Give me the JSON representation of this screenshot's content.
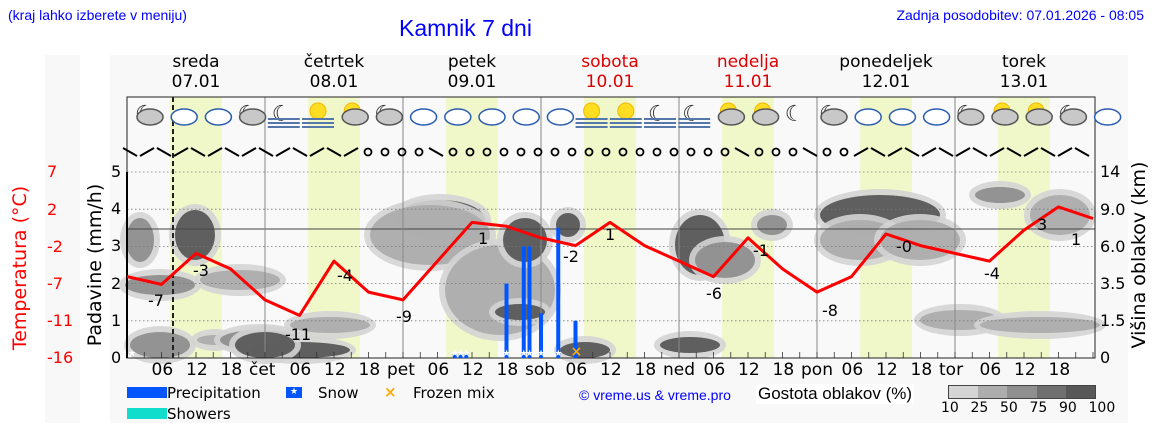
{
  "header": {
    "hint": "(kraj lahko izberete v meniju)",
    "title": "Kamnik 7 dni",
    "updated": "Zadnja posodobitev: 07.01.2026 - 08:05"
  },
  "days": [
    {
      "name": "sreda",
      "date": "07.01",
      "weekend": false
    },
    {
      "name": "četrtek",
      "date": "08.01",
      "weekend": false
    },
    {
      "name": "petek",
      "date": "09.01",
      "weekend": false
    },
    {
      "name": "sobota",
      "date": "10.01",
      "weekend": true
    },
    {
      "name": "nedelja",
      "date": "11.01",
      "weekend": true
    },
    {
      "name": "ponedeljek",
      "date": "12.01",
      "weekend": false
    },
    {
      "name": "torek",
      "date": "13.01",
      "weekend": false
    }
  ],
  "axes": {
    "left_temp_label": "Temperatura (°C)",
    "left_temp_ticks": [
      "7",
      "2",
      "-2",
      "-7",
      "-11",
      "-16"
    ],
    "left_precip_label": "Padavine (mm/h)",
    "left_precip_ticks": [
      "0",
      "1",
      "2",
      "3",
      "4",
      "5"
    ],
    "right_label": "Višina oblakov (km)",
    "right_ticks": [
      "0",
      "1.5",
      "3.5",
      "6.0",
      "9.0",
      "14"
    ],
    "x_ticks": [
      "06",
      "12",
      "18",
      "čet",
      "06",
      "12",
      "18",
      "pet",
      "06",
      "12",
      "18",
      "sob",
      "06",
      "12",
      "18",
      "ned",
      "06",
      "12",
      "18",
      "pon",
      "06",
      "12",
      "18",
      "tor",
      "06",
      "12",
      "18"
    ]
  },
  "legend": {
    "precipitation": "Precipitation",
    "snow": "Snow",
    "frozen_mix": "Frozen mix",
    "showers": "Showers",
    "credit": "© vreme.us & vreme.pro",
    "cloud_density_label": "Gostota oblakov (%)",
    "cloud_density_ticks": [
      "10",
      "25",
      "50",
      "75",
      "90",
      "100"
    ]
  },
  "colors": {
    "temperature": "#ff0000",
    "precipitation": "#0055ff",
    "showers": "#11ddcc",
    "frozen_mix": "#ffaa00",
    "daylight": "#f0f7c8",
    "weekend_text": "#dd0000",
    "link_blue": "#0000ff"
  },
  "chart_data": {
    "type": "line",
    "title": "Kamnik 7 dni",
    "xlabel": "",
    "ylabel": "Padavine (mm/h)",
    "ylim": [
      0,
      5
    ],
    "grid": true,
    "temperature_series": {
      "name": "Temperatura (°C)",
      "unit": "°C",
      "range": [
        -16,
        9
      ],
      "hours": [
        0,
        6,
        12,
        18,
        24,
        30,
        36,
        42,
        48,
        54,
        60,
        66,
        72,
        78,
        84,
        90,
        96,
        102,
        108,
        114,
        120,
        126,
        132,
        138,
        144,
        150,
        156,
        162,
        168
      ],
      "values": [
        -6,
        -7,
        -3,
        -5,
        -9,
        -11,
        -4,
        -8,
        -9,
        -4,
        1,
        0.5,
        -1,
        -2,
        1,
        -2,
        -4,
        -6,
        -1,
        -5,
        -8,
        -6,
        -0.5,
        -2,
        -3,
        -4,
        0,
        3,
        1.5
      ]
    },
    "temperature_labels": [
      {
        "hour": 5,
        "value": "-7"
      },
      {
        "hour": 13,
        "value": "-3"
      },
      {
        "hour": 30,
        "value": "-11"
      },
      {
        "hour": 38,
        "value": "-4"
      },
      {
        "hour": 48,
        "value": "-9"
      },
      {
        "hour": 62,
        "value": "1"
      },
      {
        "hour": 78,
        "value": "-2"
      },
      {
        "hour": 84,
        "value": "1"
      },
      {
        "hour": 102,
        "value": "-6"
      },
      {
        "hour": 110,
        "value": "-1"
      },
      {
        "hour": 121,
        "value": "-8"
      },
      {
        "hour": 134,
        "value": "-0"
      },
      {
        "hour": 150,
        "value": "-4"
      },
      {
        "hour": 159,
        "value": "3"
      },
      {
        "hour": 165,
        "value": "1"
      }
    ],
    "precipitation_bars": [
      {
        "hour": 57,
        "value": 0.1,
        "snow": true
      },
      {
        "hour": 58,
        "value": 0.1,
        "snow": true
      },
      {
        "hour": 59,
        "value": 0.1,
        "snow": true
      },
      {
        "hour": 66,
        "value": 2.0,
        "snow": true
      },
      {
        "hour": 69,
        "value": 3.0,
        "snow": true
      },
      {
        "hour": 70,
        "value": 3.0,
        "snow": true
      },
      {
        "hour": 72,
        "value": 1.2,
        "snow": true
      },
      {
        "hour": 75,
        "value": 3.5,
        "snow": true
      },
      {
        "hour": 78,
        "value": 1.0,
        "frozen_mix": true
      }
    ],
    "current_time_hour": 8
  }
}
